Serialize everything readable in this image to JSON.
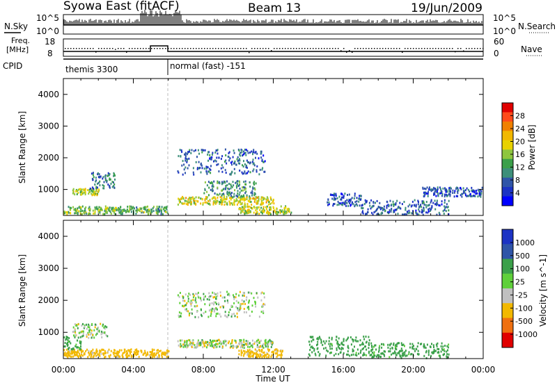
{
  "header": {
    "station": "Syowa East (fitACF)",
    "beam": "Beam 13",
    "date": "19/Jun/2009"
  },
  "noise_panel": {
    "left_label": "N.Sky",
    "right_label": "N.Search",
    "left_ticks": [
      "10^5",
      "10^0"
    ],
    "right_ticks": [
      "10^5",
      "10^0"
    ]
  },
  "freq_panel": {
    "left_label_line1": "Freq.",
    "left_label_line2": "[MHz]",
    "right_label": "Nave",
    "left_ticks": [
      "18",
      "8"
    ],
    "right_ticks": [
      "60",
      "0"
    ]
  },
  "cpid_panel": {
    "label": "CPID",
    "segments": [
      {
        "text": "themis 3300",
        "start_hour": 0,
        "end_hour": 6
      },
      {
        "text": "normal (fast) -151",
        "start_hour": 6,
        "end_hour": 24
      }
    ]
  },
  "power_panel": {
    "ylabel": "Slant Range [km]",
    "colorbar_label": "Power [dB]",
    "colorbar_ticks": [
      "28",
      "24",
      "20",
      "16",
      "12",
      "8",
      "4"
    ],
    "colorbar_colors": [
      "#e00000",
      "#ff4a1a",
      "#f08000",
      "#f2b800",
      "#e8d200",
      "#8ec63f",
      "#3ba04a",
      "#3d8f7a",
      "#2f55a8",
      "#1c33c4",
      "#0000ff"
    ]
  },
  "velocity_panel": {
    "ylabel": "Slant Range [km]",
    "colorbar_label": "Velocity [m s^-1]",
    "colorbar_ticks": [
      "1000",
      "500",
      "100",
      "25",
      "-25",
      "-100",
      "-500",
      "-1000"
    ],
    "colorbar_colors": [
      "#1c33c4",
      "#2f55a8",
      "#3ba04a",
      "#5fd03a",
      "#c0c0c0",
      "#f2b800",
      "#f07010",
      "#e00000"
    ]
  },
  "x_axis": {
    "label": "Time UT",
    "ticks": [
      "00:00",
      "04:00",
      "08:00",
      "12:00",
      "16:00",
      "20:00",
      "00:00"
    ]
  },
  "chart_data": [
    {
      "type": "heatmap",
      "title": "Power [dB]",
      "xlabel": "Time UT",
      "ylabel": "Slant Range [km]",
      "x_range_hours": [
        0,
        24
      ],
      "ylim": [
        180,
        4500
      ],
      "y_ticks": [
        1000,
        2000,
        3000,
        4000
      ],
      "scatter_regions": [
        {
          "t0": 0.0,
          "t1": 3.0,
          "r0": 250,
          "r1": 500,
          "level": 14
        },
        {
          "t0": 0.5,
          "t1": 2.0,
          "r0": 850,
          "r1": 1050,
          "level": 16
        },
        {
          "t0": 1.5,
          "t1": 3.0,
          "r0": 1050,
          "r1": 1600,
          "level": 8
        },
        {
          "t0": 3.0,
          "t1": 6.0,
          "r0": 250,
          "r1": 500,
          "level": 12
        },
        {
          "t0": 6.5,
          "t1": 12.0,
          "r0": 550,
          "r1": 800,
          "level": 18
        },
        {
          "t0": 6.5,
          "t1": 11.5,
          "r0": 1500,
          "r1": 2300,
          "level": 6
        },
        {
          "t0": 8.0,
          "t1": 11.0,
          "r0": 800,
          "r1": 1300,
          "level": 10
        },
        {
          "t0": 10.0,
          "t1": 13.0,
          "r0": 250,
          "r1": 500,
          "level": 16
        },
        {
          "t0": 15.0,
          "t1": 17.0,
          "r0": 500,
          "r1": 900,
          "level": 5
        },
        {
          "t0": 17.0,
          "t1": 22.0,
          "r0": 200,
          "r1": 700,
          "level": 6
        },
        {
          "t0": 20.5,
          "t1": 24.0,
          "r0": 800,
          "r1": 1100,
          "level": 5
        }
      ]
    },
    {
      "type": "heatmap",
      "title": "Velocity [m s^-1]",
      "xlabel": "Time UT",
      "ylabel": "Slant Range [km]",
      "x_range_hours": [
        0,
        24
      ],
      "ylim": [
        180,
        4500
      ],
      "y_ticks": [
        1000,
        2000,
        3000,
        4000
      ],
      "scatter_regions": [
        {
          "t0": 0.0,
          "t1": 6.0,
          "r0": 250,
          "r1": 500,
          "velocity": -60
        },
        {
          "t0": 0.5,
          "t1": 2.5,
          "r0": 850,
          "r1": 1300,
          "velocity": 0
        },
        {
          "t0": 0.0,
          "t1": 1.0,
          "r0": 500,
          "r1": 900,
          "velocity": 60
        },
        {
          "t0": 6.5,
          "t1": 12.0,
          "r0": 550,
          "r1": 800,
          "velocity": 0
        },
        {
          "t0": 6.5,
          "t1": 11.5,
          "r0": 1500,
          "r1": 2300,
          "velocity": 0
        },
        {
          "t0": 10.0,
          "t1": 12.5,
          "r0": 250,
          "r1": 500,
          "velocity": -60
        },
        {
          "t0": 14.0,
          "t1": 17.5,
          "r0": 300,
          "r1": 900,
          "velocity": 60
        },
        {
          "t0": 17.5,
          "t1": 22.0,
          "r0": 200,
          "r1": 700,
          "velocity": 60
        }
      ]
    }
  ]
}
